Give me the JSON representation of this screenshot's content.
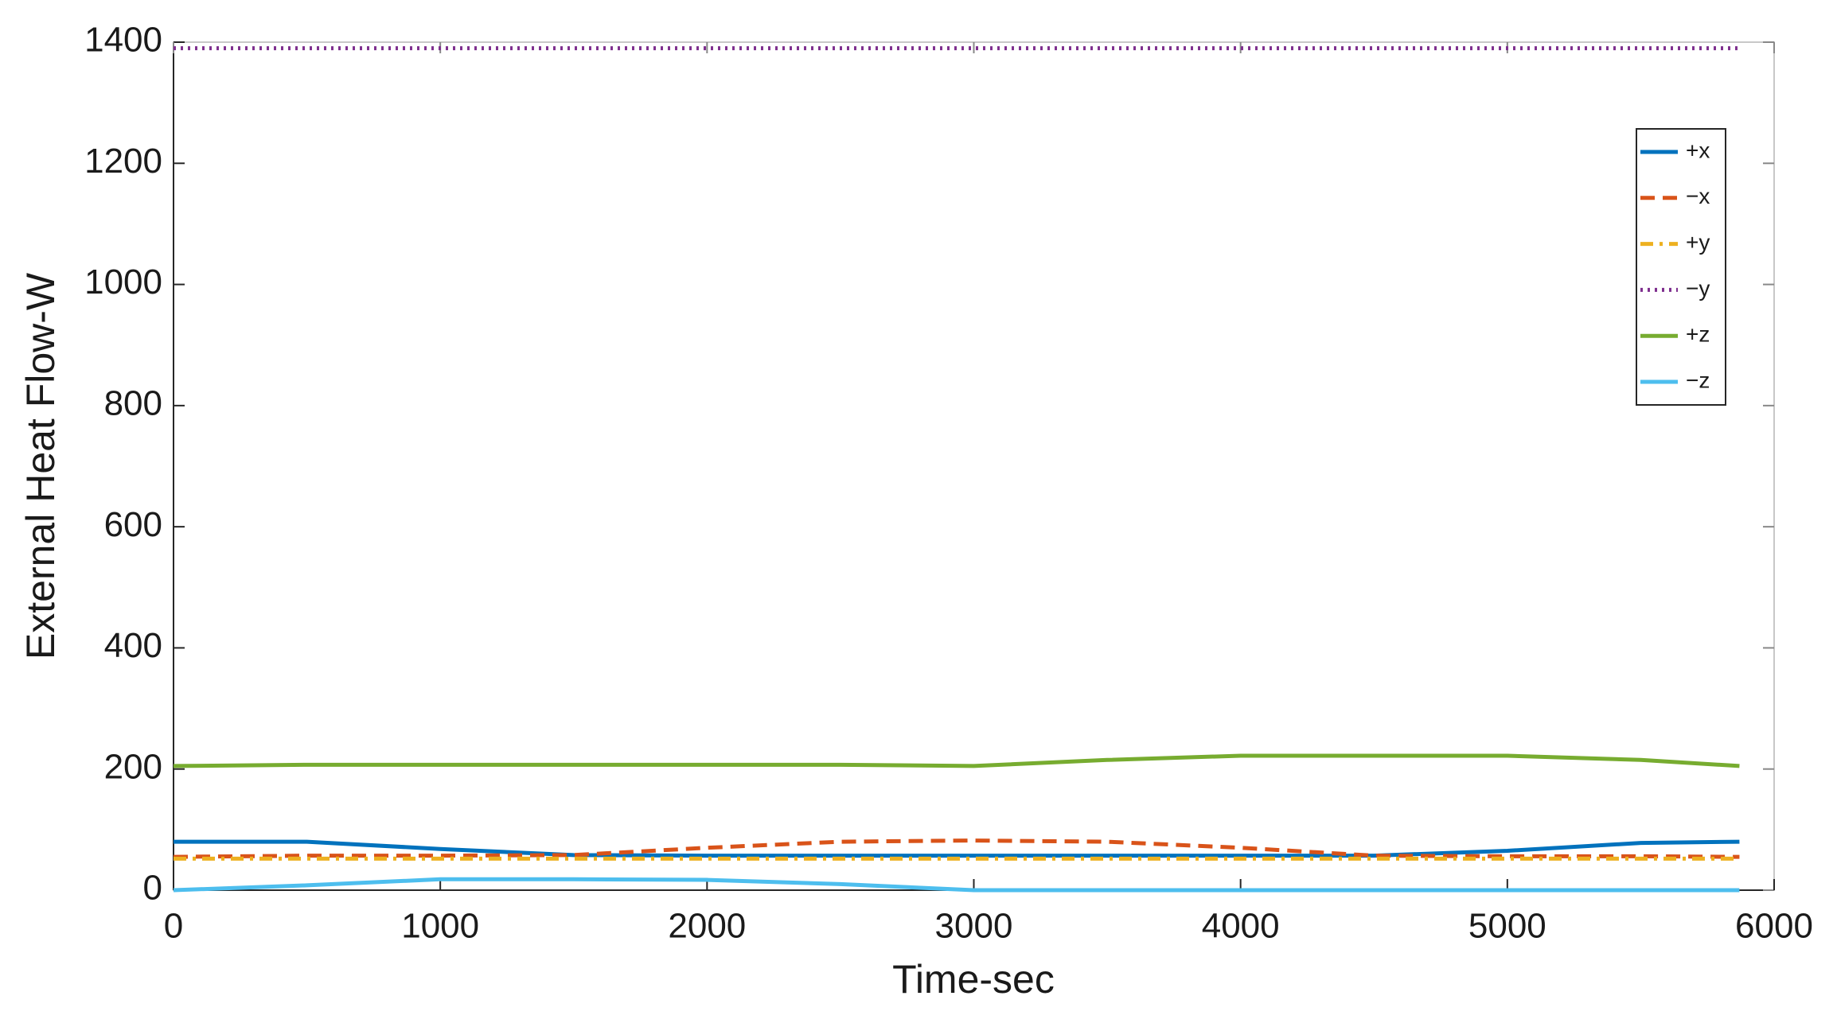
{
  "chart_data": {
    "type": "line",
    "x_label": "Time-sec",
    "y_label": "External Heat Flow-W",
    "x": [
      0,
      500,
      1000,
      1500,
      2000,
      2500,
      3000,
      3500,
      4000,
      4500,
      5000,
      5500,
      5870
    ],
    "series": [
      {
        "name": "+x",
        "color": "#0072bd",
        "style": "solid",
        "values": [
          80,
          80,
          68,
          58,
          57,
          57,
          57,
          57,
          57,
          57,
          65,
          78,
          80
        ]
      },
      {
        "name": "−x",
        "color": "#d95319",
        "style": "dashed",
        "values": [
          55,
          57,
          57,
          58,
          70,
          80,
          82,
          80,
          70,
          57,
          56,
          56,
          55
        ]
      },
      {
        "name": "+y",
        "color": "#edb120",
        "style": "dashdot",
        "values": [
          52,
          52,
          52,
          52,
          52,
          52,
          52,
          52,
          52,
          52,
          52,
          52,
          52
        ]
      },
      {
        "name": "−y",
        "color": "#7e2f8e",
        "style": "dotted",
        "values": [
          1390,
          1390,
          1390,
          1390,
          1390,
          1390,
          1390,
          1390,
          1390,
          1390,
          1390,
          1390,
          1390
        ]
      },
      {
        "name": "+z",
        "color": "#77ac30",
        "style": "solid",
        "values": [
          205,
          207,
          207,
          207,
          207,
          207,
          205,
          215,
          222,
          222,
          222,
          215,
          205
        ]
      },
      {
        "name": "−z",
        "color": "#4dbeee",
        "style": "solid",
        "values": [
          0,
          8,
          18,
          18,
          17,
          10,
          0,
          0,
          0,
          0,
          0,
          0,
          0
        ]
      }
    ],
    "xlim": [
      0,
      6000
    ],
    "xticks": [
      0,
      1000,
      2000,
      3000,
      4000,
      5000,
      6000
    ],
    "ylim": [
      0,
      1400
    ],
    "yticks": [
      0,
      200,
      400,
      600,
      800,
      1000,
      1200,
      1400
    ],
    "legend": "upper-right",
    "grid": false
  }
}
